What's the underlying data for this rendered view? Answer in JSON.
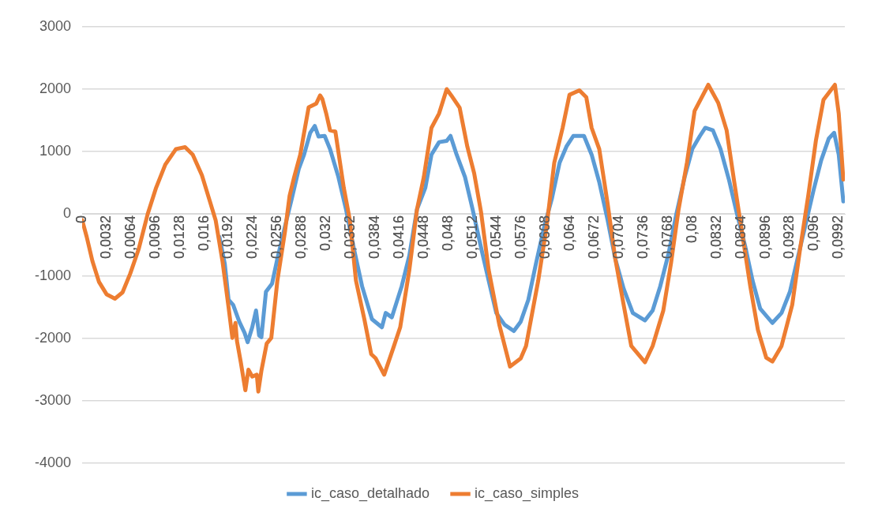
{
  "chart_data": {
    "type": "line",
    "xlim": [
      0,
      0.1
    ],
    "xticks": [
      0,
      {
        "value": 0.0032,
        "label": "0,0032"
      },
      {
        "value": 0.0064,
        "label": "0,0064"
      },
      {
        "value": 0.0096,
        "label": "0,0096"
      },
      {
        "value": 0.0128,
        "label": "0,0128"
      },
      {
        "value": 0.016,
        "label": "0,016"
      },
      {
        "value": 0.0192,
        "label": "0,0192"
      },
      {
        "value": 0.0224,
        "label": "0,0224"
      },
      {
        "value": 0.0256,
        "label": "0,0256"
      },
      {
        "value": 0.0288,
        "label": "0,0288"
      },
      {
        "value": 0.032,
        "label": "0,032"
      },
      {
        "value": 0.0352,
        "label": "0,0352"
      },
      {
        "value": 0.0384,
        "label": "0,0384"
      },
      {
        "value": 0.0416,
        "label": "0,0416"
      },
      {
        "value": 0.0448,
        "label": "0,0448"
      },
      {
        "value": 0.048,
        "label": "0,048"
      },
      {
        "value": 0.0512,
        "label": "0,0512"
      },
      {
        "value": 0.0544,
        "label": "0,0544"
      },
      {
        "value": 0.0576,
        "label": "0,0576"
      },
      {
        "value": 0.0608,
        "label": "0,0608"
      },
      {
        "value": 0.064,
        "label": "0,064"
      },
      {
        "value": 0.0672,
        "label": "0,0672"
      },
      {
        "value": 0.0704,
        "label": "0,0704"
      },
      {
        "value": 0.0736,
        "label": "0,0736"
      },
      {
        "value": 0.0768,
        "label": "0,0768"
      },
      {
        "value": 0.08,
        "label": "0,08"
      },
      {
        "value": 0.0832,
        "label": "0,0832"
      },
      {
        "value": 0.0864,
        "label": "0,0864"
      },
      {
        "value": 0.0896,
        "label": "0,0896"
      },
      {
        "value": 0.0928,
        "label": "0,0928"
      },
      {
        "value": 0.096,
        "label": "0,096"
      },
      {
        "value": 0.0992,
        "label": "0,0992"
      }
    ],
    "ylim": [
      -4000,
      3000
    ],
    "yticks": [
      -4000,
      -3000,
      -2000,
      -1000,
      0,
      1000,
      2000,
      3000
    ],
    "grid": "y",
    "legend": "bottom",
    "series": [
      {
        "name": "ic_caso_detalhado",
        "color": "#5b9bd5",
        "x": [
          0.018,
          0.0187,
          0.0192,
          0.0198,
          0.0206,
          0.0213,
          0.0217,
          0.0223,
          0.0228,
          0.0232,
          0.0235,
          0.0241,
          0.0249,
          0.0256,
          0.0266,
          0.0275,
          0.0284,
          0.0291,
          0.0299,
          0.0305,
          0.031,
          0.0318,
          0.0325,
          0.0336,
          0.0346,
          0.0356,
          0.0367,
          0.038,
          0.0393,
          0.0398,
          0.0406,
          0.0419,
          0.0429,
          0.0439,
          0.045,
          0.0458,
          0.0468,
          0.0478,
          0.0483,
          0.0491,
          0.0502,
          0.0512,
          0.0523,
          0.0533,
          0.0543,
          0.0554,
          0.0566,
          0.0575,
          0.0585,
          0.0595,
          0.0606,
          0.0616,
          0.0626,
          0.0635,
          0.0644,
          0.0658,
          0.0668,
          0.0678,
          0.0689,
          0.0699,
          0.071,
          0.0722,
          0.073,
          0.0738,
          0.0748,
          0.0758,
          0.0769,
          0.0779,
          0.079,
          0.08,
          0.081,
          0.0817,
          0.0827,
          0.0837,
          0.0848,
          0.0858,
          0.0869,
          0.0879,
          0.0889,
          0.0905,
          0.0917,
          0.0928,
          0.0938,
          0.0948,
          0.0959,
          0.0969,
          0.0979,
          0.0986,
          0.0992,
          0.0998
        ],
        "values": [
          -370,
          -800,
          -1380,
          -1460,
          -1730,
          -1910,
          -2060,
          -1820,
          -1550,
          -1950,
          -1980,
          -1250,
          -1120,
          -720,
          -200,
          250,
          720,
          950,
          1300,
          1410,
          1240,
          1250,
          1040,
          590,
          70,
          -540,
          -1160,
          -1690,
          -1820,
          -1590,
          -1660,
          -1160,
          -670,
          70,
          420,
          950,
          1150,
          1170,
          1250,
          950,
          590,
          70,
          -540,
          -1070,
          -1590,
          -1780,
          -1880,
          -1730,
          -1380,
          -800,
          -200,
          250,
          820,
          1080,
          1250,
          1250,
          950,
          510,
          -100,
          -720,
          -1200,
          -1590,
          -1650,
          -1710,
          -1550,
          -1160,
          -630,
          -10,
          590,
          1040,
          1250,
          1380,
          1340,
          1040,
          550,
          30,
          -500,
          -1070,
          -1520,
          -1750,
          -1590,
          -1250,
          -720,
          -200,
          380,
          860,
          1210,
          1300,
          950,
          200
        ]
      },
      {
        "name": "ic_caso_simples",
        "color": "#ed7d31",
        "x": [
          0,
          0.0006,
          0.00135,
          0.0022,
          0.0032,
          0.0043,
          0.0053,
          0.0063,
          0.0074,
          0.0086,
          0.0097,
          0.0109,
          0.0123,
          0.0135,
          0.0145,
          0.0157,
          0.0167,
          0.0175,
          0.0184,
          0.0192,
          0.0197,
          0.0201,
          0.0203,
          0.0208,
          0.0214,
          0.0218,
          0.0223,
          0.0229,
          0.0231,
          0.0235,
          0.0242,
          0.0248,
          0.0256,
          0.0266,
          0.0272,
          0.0278,
          0.0286,
          0.0291,
          0.0297,
          0.0307,
          0.0312,
          0.0315,
          0.032,
          0.0325,
          0.0332,
          0.0343,
          0.0351,
          0.0359,
          0.037,
          0.0379,
          0.0385,
          0.0396,
          0.0408,
          0.0417,
          0.0429,
          0.0439,
          0.0448,
          0.0458,
          0.0468,
          0.0478,
          0.0484,
          0.0495,
          0.0505,
          0.0514,
          0.0523,
          0.0533,
          0.0547,
          0.0561,
          0.0575,
          0.0582,
          0.0598,
          0.0609,
          0.0619,
          0.063,
          0.0639,
          0.0652,
          0.0661,
          0.0668,
          0.0678,
          0.0689,
          0.0699,
          0.071,
          0.072,
          0.0738,
          0.0748,
          0.0762,
          0.0772,
          0.0782,
          0.0793,
          0.0803,
          0.0821,
          0.0834,
          0.0845,
          0.0855,
          0.0865,
          0.0876,
          0.0886,
          0.0897,
          0.0905,
          0.0917,
          0.0931,
          0.0941,
          0.0952,
          0.0962,
          0.0972,
          0.0987,
          0.0992,
          0.0998
        ],
        "values": [
          -100,
          -370,
          -760,
          -1090,
          -1290,
          -1360,
          -1260,
          -960,
          -570,
          0,
          420,
          790,
          1040,
          1070,
          950,
          620,
          220,
          -100,
          -760,
          -1500,
          -1990,
          -1750,
          -2040,
          -2380,
          -2830,
          -2500,
          -2610,
          -2580,
          -2850,
          -2520,
          -2080,
          -1990,
          -1070,
          -280,
          290,
          590,
          950,
          1300,
          1710,
          1770,
          1900,
          1840,
          1610,
          1340,
          1320,
          420,
          -100,
          -1070,
          -1690,
          -2250,
          -2320,
          -2580,
          -2150,
          -1820,
          -900,
          70,
          590,
          1380,
          1610,
          2000,
          1900,
          1700,
          1080,
          650,
          30,
          -900,
          -1780,
          -2450,
          -2320,
          -2120,
          -1070,
          -200,
          820,
          1380,
          1910,
          1980,
          1870,
          1380,
          1040,
          160,
          -720,
          -1460,
          -2120,
          -2380,
          -2120,
          -1550,
          -800,
          70,
          820,
          1650,
          2070,
          1780,
          1340,
          510,
          -280,
          -1160,
          -1860,
          -2310,
          -2370,
          -2120,
          -1460,
          -590,
          290,
          1170,
          1830,
          2070,
          1610,
          550
        ]
      }
    ]
  }
}
